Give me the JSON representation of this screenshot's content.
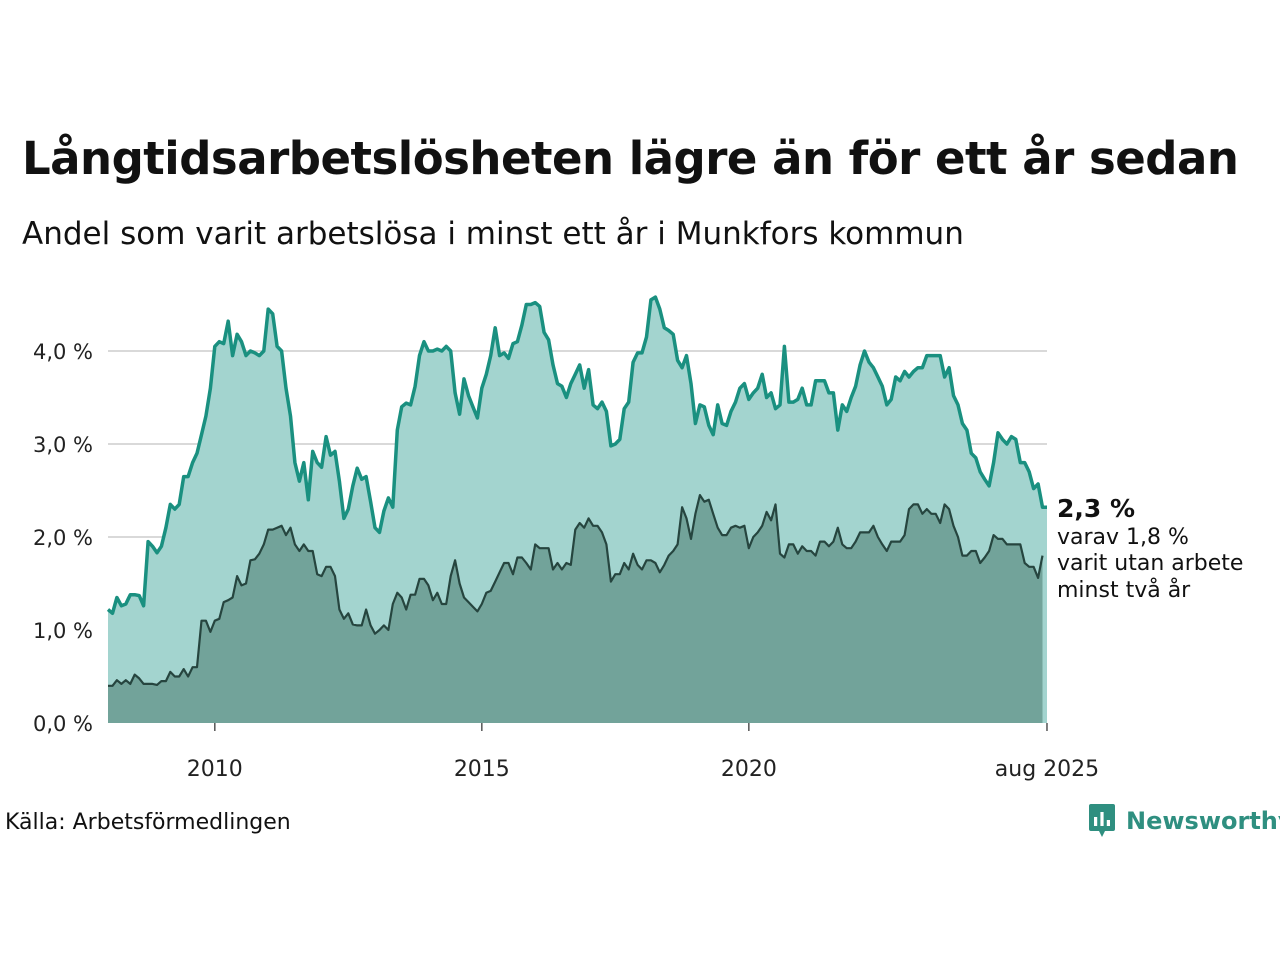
{
  "title": "Långtidsarbetslösheten lägre än för ett år sedan",
  "subtitle": "Andel som varit arbetslösa i minst ett år i Munkfors kommun",
  "source": "Källa: Arbetsförmedlingen",
  "brand": {
    "name": "Newsworthy",
    "icon": "newsworthy-logo-icon",
    "color": "#2f8f80"
  },
  "colors": {
    "upper_line": "#1a9080",
    "upper_fill": "#a3d4cf",
    "lower_line": "#26453f",
    "lower_fill": "#72a39a",
    "grid": "#d9d9d9"
  },
  "annotation": {
    "value": "2,3 %",
    "line1": "varav 1,8 %",
    "line2": "varit utan arbete",
    "line3": "minst två år"
  },
  "chart_data": {
    "type": "area",
    "x_unit": "month",
    "x_start": "2008-01",
    "x_end": "2025-08",
    "x_tick_values": [
      2010,
      2015,
      2020,
      2025.583
    ],
    "x_tick_labels": [
      "2010",
      "2015",
      "2020",
      "aug 2025"
    ],
    "y_ticks": [
      0,
      1,
      2,
      3,
      4
    ],
    "y_tick_labels": [
      "0,0 %",
      "1,0 %",
      "2,0 %",
      "3,0 %",
      "4,0 %"
    ],
    "ylim": [
      0,
      4.5
    ],
    "series": [
      {
        "values": [
          1.22,
          1.18,
          1.35,
          1.26,
          1.28,
          1.38,
          1.38,
          1.37,
          1.26,
          1.95,
          1.9,
          1.83,
          1.9,
          2.1,
          2.35,
          2.3,
          2.35,
          2.65,
          2.65,
          2.8,
          2.9,
          3.1,
          3.3,
          3.6,
          4.05,
          4.1,
          4.08,
          4.32,
          3.95,
          4.18,
          4.1,
          3.95,
          4.0,
          3.98,
          3.95,
          4.0,
          4.45,
          4.4,
          4.05,
          4.0,
          3.6,
          3.3,
          2.8,
          2.6,
          2.8,
          2.4,
          2.92,
          2.8,
          2.75,
          3.08,
          2.88,
          2.92,
          2.6,
          2.2,
          2.3,
          2.55,
          2.74,
          2.62,
          2.65,
          2.38,
          2.1,
          2.05,
          2.28,
          2.42,
          2.32,
          3.15,
          3.4,
          3.44,
          3.42,
          3.62,
          3.95,
          4.1,
          4.0,
          4.0,
          4.02,
          4.0,
          4.05,
          4.0,
          3.55,
          3.32,
          3.7,
          3.52,
          3.4,
          3.28,
          3.6,
          3.75,
          3.95,
          4.25,
          3.95,
          3.98,
          3.92,
          4.08,
          4.1,
          4.28,
          4.5,
          4.5,
          4.52,
          4.48,
          4.2,
          4.12,
          3.85,
          3.65,
          3.62,
          3.5,
          3.65,
          3.75,
          3.85,
          3.6,
          3.8,
          3.42,
          3.38,
          3.45,
          3.35,
          2.98,
          3.0,
          3.05,
          3.38,
          3.45,
          3.88,
          3.98,
          3.98,
          4.15,
          4.55,
          4.58,
          4.45,
          4.25,
          4.22,
          4.18,
          3.9,
          3.82,
          3.95,
          3.65,
          3.22,
          3.42,
          3.4,
          3.2,
          3.1,
          3.42,
          3.22,
          3.2,
          3.35,
          3.45,
          3.6,
          3.65,
          3.48,
          3.55,
          3.6,
          3.75,
          3.5,
          3.55,
          3.38,
          3.42,
          4.05,
          3.45,
          3.45,
          3.48,
          3.6,
          3.42,
          3.42,
          3.68,
          3.68,
          3.68,
          3.55,
          3.55,
          3.15,
          3.42,
          3.35,
          3.5,
          3.62,
          3.85,
          4.0,
          3.88,
          3.82,
          3.72,
          3.62,
          3.42,
          3.48,
          3.72,
          3.68,
          3.78,
          3.72,
          3.78,
          3.82,
          3.82,
          3.95,
          3.95,
          3.95,
          3.95,
          3.72,
          3.82,
          3.52,
          3.42,
          3.22,
          3.15,
          2.9,
          2.85,
          2.7,
          2.62,
          2.55,
          2.8,
          3.12,
          3.05,
          3.0,
          3.08,
          3.05,
          2.8,
          2.8,
          2.7,
          2.52,
          2.57,
          2.32,
          2.32
        ]
      },
      {
        "values": [
          0.4,
          0.4,
          0.46,
          0.42,
          0.46,
          0.42,
          0.52,
          0.48,
          0.42,
          0.42,
          0.42,
          0.41,
          0.45,
          0.45,
          0.55,
          0.5,
          0.5,
          0.58,
          0.5,
          0.6,
          0.6,
          1.1,
          1.1,
          0.98,
          1.1,
          1.12,
          1.3,
          1.32,
          1.35,
          1.58,
          1.48,
          1.5,
          1.75,
          1.76,
          1.82,
          1.92,
          2.08,
          2.08,
          2.1,
          2.12,
          2.02,
          2.1,
          1.92,
          1.85,
          1.92,
          1.85,
          1.85,
          1.6,
          1.58,
          1.68,
          1.68,
          1.58,
          1.22,
          1.12,
          1.18,
          1.06,
          1.05,
          1.05,
          1.22,
          1.05,
          0.96,
          1.0,
          1.05,
          1.0,
          1.28,
          1.4,
          1.35,
          1.22,
          1.38,
          1.38,
          1.55,
          1.55,
          1.48,
          1.32,
          1.4,
          1.28,
          1.28,
          1.58,
          1.75,
          1.5,
          1.35,
          1.3,
          1.25,
          1.2,
          1.28,
          1.4,
          1.42,
          1.52,
          1.62,
          1.72,
          1.72,
          1.6,
          1.78,
          1.78,
          1.72,
          1.65,
          1.92,
          1.88,
          1.88,
          1.88,
          1.65,
          1.72,
          1.65,
          1.72,
          1.7,
          2.08,
          2.15,
          2.1,
          2.2,
          2.12,
          2.12,
          2.05,
          1.92,
          1.52,
          1.6,
          1.6,
          1.72,
          1.65,
          1.82,
          1.7,
          1.65,
          1.75,
          1.75,
          1.72,
          1.62,
          1.7,
          1.8,
          1.85,
          1.92,
          2.32,
          2.2,
          1.98,
          2.25,
          2.45,
          2.38,
          2.4,
          2.25,
          2.1,
          2.02,
          2.02,
          2.1,
          2.12,
          2.1,
          2.12,
          1.88,
          2.0,
          2.05,
          2.12,
          2.27,
          2.18,
          2.35,
          1.82,
          1.78,
          1.92,
          1.92,
          1.82,
          1.9,
          1.85,
          1.85,
          1.8,
          1.95,
          1.95,
          1.9,
          1.95,
          2.1,
          1.92,
          1.88,
          1.88,
          1.95,
          2.05,
          2.05,
          2.05,
          2.12,
          2.0,
          1.92,
          1.85,
          1.95,
          1.95,
          1.95,
          2.02,
          2.3,
          2.35,
          2.35,
          2.25,
          2.3,
          2.25,
          2.25,
          2.15,
          2.35,
          2.3,
          2.12,
          2.0,
          1.8,
          1.8,
          1.85,
          1.85,
          1.72,
          1.78,
          1.85,
          2.02,
          1.98,
          1.98,
          1.92,
          1.92,
          1.92,
          1.92,
          1.72,
          1.68,
          1.68,
          1.56,
          1.8
        ]
      }
    ]
  }
}
